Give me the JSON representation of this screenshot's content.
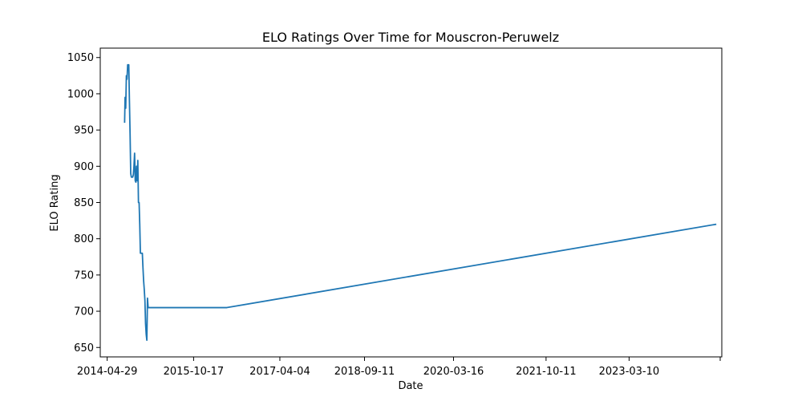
{
  "chart_data": {
    "type": "line",
    "title": "ELO Ratings Over Time for Mouscron-Peruwelz",
    "xlabel": "Date",
    "ylabel": "ELO Rating",
    "x_ticks": [
      "2014-04-29",
      "2015-10-17",
      "2017-04-04",
      "2018-09-11",
      "2020-03-16",
      "2021-10-11",
      "2023-03-10",
      ""
    ],
    "x_tick_values": [
      "2014-04-29",
      "2015-10-17",
      "2017-04-04",
      "2018-09-11",
      "2020-03-16",
      "2021-10-11",
      "2023-03-10",
      "2024-09-25"
    ],
    "y_ticks": [
      650,
      700,
      750,
      800,
      850,
      900,
      950,
      1000,
      1050
    ],
    "xlim": [
      "2014-03-17",
      "2024-10-05"
    ],
    "ylim": [
      637,
      1063
    ],
    "grid": false,
    "line_color": "#1f77b4",
    "series": [
      {
        "x": [
          "2014-08-15",
          "2014-08-18",
          "2014-08-22",
          "2014-08-26",
          "2014-08-30",
          "2014-09-03",
          "2014-09-06",
          "2014-09-10",
          "2014-09-14",
          "2014-09-18",
          "2014-09-22",
          "2014-09-26",
          "2014-09-30",
          "2014-10-04",
          "2014-10-08",
          "2014-10-12",
          "2014-10-16",
          "2014-10-20",
          "2014-10-24",
          "2014-10-28",
          "2014-11-01",
          "2014-11-05",
          "2014-11-09",
          "2014-11-13",
          "2014-11-17",
          "2014-11-21",
          "2014-11-25",
          "2014-11-29",
          "2014-12-03",
          "2014-12-07",
          "2014-12-11",
          "2014-12-15",
          "2014-12-19",
          "2014-12-23",
          "2014-12-27",
          "2014-12-31",
          "2015-01-04",
          "2015-01-08",
          "2015-01-12",
          "2015-01-16",
          "2015-01-20",
          "2015-01-24",
          "2015-01-28",
          "2015-02-01",
          "2015-02-05",
          "2015-02-09",
          "2015-02-13",
          "2015-02-17",
          "2015-02-21",
          "2015-02-25",
          "2015-03-01",
          "2015-03-05",
          "2015-03-09",
          "2015-03-13",
          "2015-03-17",
          "2015-03-21",
          "2015-03-25",
          "2015-03-29",
          "2015-04-02",
          "2015-04-20",
          "2015-05-20",
          "2015-06-20",
          "2015-07-20",
          "2015-08-01",
          "2015-08-05",
          "2015-08-09",
          "2015-08-13",
          "2015-08-17",
          "2015-08-21",
          "2015-08-25",
          "2015-08-29",
          "2015-09-02",
          "2015-09-06",
          "2015-09-10",
          "2015-09-14",
          "2015-09-18",
          "2015-09-22",
          "2015-09-26",
          "2015-09-30",
          "2015-10-04",
          "2015-10-08",
          "2015-10-12",
          "2015-10-16",
          "2015-10-20",
          "2015-10-24",
          "2015-10-28",
          "2015-11-01",
          "2015-11-05",
          "2015-11-09",
          "2015-11-13",
          "2015-11-17",
          "2015-11-21",
          "2015-11-25",
          "2015-11-29",
          "2015-12-03",
          "2015-12-07",
          "2015-12-11",
          "2015-12-15",
          "2015-12-19",
          "2015-12-23",
          "2015-12-27",
          "2015-12-31",
          "2016-01-04",
          "2016-01-08",
          "2016-01-12",
          "2016-01-16",
          "2016-01-20",
          "2016-01-24",
          "2016-01-28",
          "2016-02-01",
          "2016-02-05",
          "2016-02-09",
          "2016-02-13",
          "2016-02-17",
          "2016-02-21",
          "2016-02-25",
          "2016-02-29",
          "2016-03-04",
          "2016-03-08",
          "2016-03-12",
          "2016-03-16",
          "2016-03-20",
          "2016-03-24",
          "2016-03-28",
          "2016-04-01",
          "2016-04-05",
          "2016-04-09",
          "2016-04-13",
          "2016-04-17",
          "2016-04-21",
          "2016-04-25",
          "2016-04-29",
          "2016-05-03",
          "2016-05-10",
          "2024-09-01"
        ],
        "values": [
          960,
          995,
          980,
          1025,
          1020,
          1040,
          1040,
          1040,
          990,
          945,
          890,
          885,
          885,
          885,
          888,
          900,
          918,
          880,
          878,
          900,
          880,
          908,
          850,
          850,
          820,
          780,
          780,
          780,
          780,
          760,
          742,
          730,
          715,
          683,
          668,
          660,
          718,
          705,
          705,
          705,
          705,
          705,
          705,
          705,
          705,
          705,
          705,
          705,
          705,
          705,
          705,
          705,
          705,
          705,
          705,
          705,
          705,
          705,
          705,
          705,
          705,
          705,
          705,
          705,
          705,
          705,
          705,
          705,
          705,
          705,
          705,
          705,
          705,
          705,
          705,
          705,
          705,
          705,
          705,
          705,
          705,
          705,
          705,
          705,
          705,
          705,
          705,
          705,
          705,
          705,
          705,
          705,
          705,
          705,
          705,
          705,
          705,
          705,
          705,
          705,
          705,
          705,
          705,
          705,
          705,
          705,
          705,
          705,
          705,
          705,
          705,
          705,
          705,
          705,
          705,
          705,
          705,
          705,
          705,
          705,
          705,
          705,
          705,
          705,
          705,
          705,
          705,
          705,
          705,
          705,
          705,
          705,
          705,
          705,
          820
        ]
      }
    ]
  }
}
